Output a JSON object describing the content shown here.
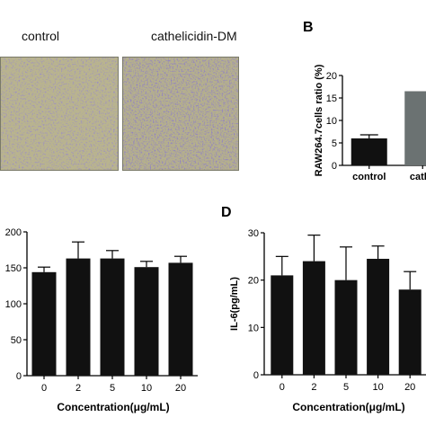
{
  "panelA": {
    "labels": [
      "control",
      "cathelicidin-DM"
    ]
  },
  "panelB": {
    "letter": "B",
    "chart_data": {
      "type": "bar",
      "categories": [
        "control",
        "cathe"
      ],
      "values": [
        6.0,
        16.5
      ],
      "errors": [
        0.8,
        0.0
      ],
      "ylabel": "RAW264.7cells ratio (%)",
      "yticks": [
        0,
        5,
        10,
        15,
        20
      ],
      "ylim": [
        0,
        20
      ],
      "colors": [
        "#111111",
        "#6b7272"
      ]
    }
  },
  "panelC": {
    "chart_data": {
      "type": "bar",
      "categories": [
        "0",
        "2",
        "5",
        "10",
        "20"
      ],
      "values": [
        144,
        163,
        163,
        151,
        157
      ],
      "errors": [
        7,
        23,
        11,
        8,
        9
      ],
      "xlabel": "Concentration(μg/mL)",
      "ylabel": "",
      "yticks": [
        0,
        50,
        100,
        150,
        200
      ],
      "ylim": [
        0,
        200
      ],
      "colors": [
        "#111111"
      ]
    }
  },
  "panelD": {
    "letter": "D",
    "chart_data": {
      "type": "bar",
      "categories": [
        "0",
        "2",
        "5",
        "10",
        "20"
      ],
      "values": [
        21,
        24,
        20,
        24.5,
        18
      ],
      "errors": [
        4,
        5.5,
        7,
        2.7,
        3.8
      ],
      "xlabel": "Concentration(μg/mL)",
      "ylabel": "IL-6(pg/mL)",
      "yticks": [
        0,
        10,
        20,
        30
      ],
      "ylim": [
        0,
        30
      ],
      "colors": [
        "#111111"
      ]
    }
  }
}
